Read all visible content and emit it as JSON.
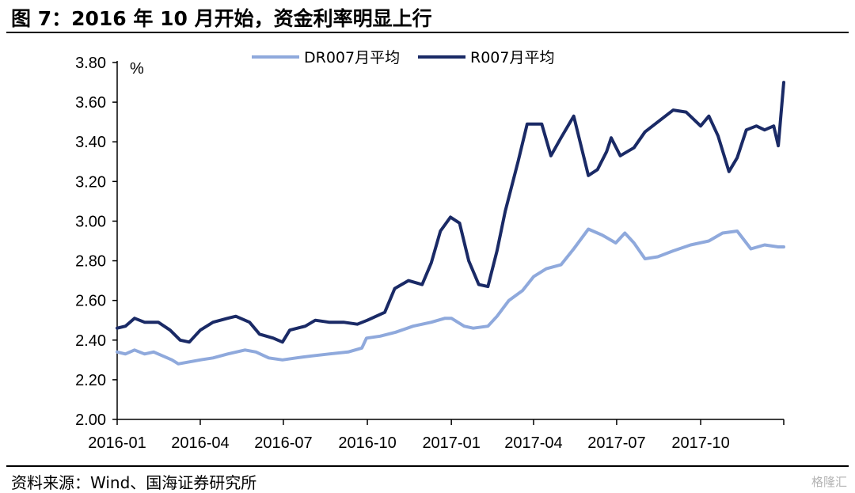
{
  "header": {
    "title": "图 7：2016 年 10 月开始，资金利率明显上行"
  },
  "footer": {
    "source": "资料来源：Wind、国海证券研究所",
    "watermark": "格隆汇"
  },
  "chart_data": {
    "type": "line",
    "title": "图 7：2016 年 10 月开始，资金利率明显上行",
    "ylabel": "%",
    "xlabel": "",
    "ylim": [
      2.0,
      3.8
    ],
    "yticks": [
      "2.00",
      "2.20",
      "2.40",
      "2.60",
      "2.80",
      "3.00",
      "3.20",
      "3.40",
      "3.60",
      "3.80"
    ],
    "xrange": [
      "2016-01-01",
      "2017-12-31"
    ],
    "xticks": [
      {
        "date": "2016-01-01",
        "label": "2016-01"
      },
      {
        "date": "2016-04-01",
        "label": "2016-04"
      },
      {
        "date": "2016-07-01",
        "label": "2016-07"
      },
      {
        "date": "2016-10-01",
        "label": "2016-10"
      },
      {
        "date": "2017-01-01",
        "label": "2017-01"
      },
      {
        "date": "2017-04-01",
        "label": "2017-04"
      },
      {
        "date": "2017-07-01",
        "label": "2017-07"
      },
      {
        "date": "2017-10-01",
        "label": "2017-10"
      }
    ],
    "legend_position": "top-center",
    "grid": false,
    "series": [
      {
        "name": "DR007月平均",
        "color": "#8fa9dc",
        "points": [
          [
            "2016-01-01",
            2.34
          ],
          [
            "2016-01-10",
            2.33
          ],
          [
            "2016-01-20",
            2.35
          ],
          [
            "2016-01-31",
            2.33
          ],
          [
            "2016-02-10",
            2.34
          ],
          [
            "2016-02-20",
            2.32
          ],
          [
            "2016-03-01",
            2.3
          ],
          [
            "2016-03-08",
            2.28
          ],
          [
            "2016-03-20",
            2.29
          ],
          [
            "2016-04-01",
            2.3
          ],
          [
            "2016-04-15",
            2.31
          ],
          [
            "2016-05-01",
            2.33
          ],
          [
            "2016-05-20",
            2.35
          ],
          [
            "2016-06-01",
            2.34
          ],
          [
            "2016-06-15",
            2.31
          ],
          [
            "2016-06-30",
            2.3
          ],
          [
            "2016-07-15",
            2.31
          ],
          [
            "2016-08-01",
            2.32
          ],
          [
            "2016-08-20",
            2.33
          ],
          [
            "2016-09-10",
            2.34
          ],
          [
            "2016-09-25",
            2.36
          ],
          [
            "2016-09-30",
            2.41
          ],
          [
            "2016-10-15",
            2.42
          ],
          [
            "2016-11-01",
            2.44
          ],
          [
            "2016-11-20",
            2.47
          ],
          [
            "2016-12-10",
            2.49
          ],
          [
            "2016-12-25",
            2.51
          ],
          [
            "2017-01-01",
            2.51
          ],
          [
            "2017-01-15",
            2.47
          ],
          [
            "2017-01-25",
            2.46
          ],
          [
            "2017-02-10",
            2.47
          ],
          [
            "2017-02-20",
            2.52
          ],
          [
            "2017-03-05",
            2.6
          ],
          [
            "2017-03-20",
            2.65
          ],
          [
            "2017-04-01",
            2.72
          ],
          [
            "2017-04-15",
            2.76
          ],
          [
            "2017-05-01",
            2.78
          ],
          [
            "2017-05-15",
            2.86
          ],
          [
            "2017-05-31",
            2.96
          ],
          [
            "2017-06-15",
            2.93
          ],
          [
            "2017-06-30",
            2.89
          ],
          [
            "2017-07-10",
            2.94
          ],
          [
            "2017-07-20",
            2.89
          ],
          [
            "2017-08-01",
            2.81
          ],
          [
            "2017-08-15",
            2.82
          ],
          [
            "2017-09-01",
            2.85
          ],
          [
            "2017-09-20",
            2.88
          ],
          [
            "2017-10-10",
            2.9
          ],
          [
            "2017-10-25",
            2.94
          ],
          [
            "2017-11-10",
            2.95
          ],
          [
            "2017-11-25",
            2.86
          ],
          [
            "2017-12-10",
            2.88
          ],
          [
            "2017-12-25",
            2.87
          ],
          [
            "2017-12-31",
            2.87
          ]
        ]
      },
      {
        "name": "R007月平均",
        "color": "#1a2a66",
        "points": [
          [
            "2016-01-01",
            2.46
          ],
          [
            "2016-01-10",
            2.47
          ],
          [
            "2016-01-20",
            2.51
          ],
          [
            "2016-01-31",
            2.49
          ],
          [
            "2016-02-15",
            2.49
          ],
          [
            "2016-02-28",
            2.45
          ],
          [
            "2016-03-10",
            2.4
          ],
          [
            "2016-03-20",
            2.39
          ],
          [
            "2016-04-01",
            2.45
          ],
          [
            "2016-04-15",
            2.49
          ],
          [
            "2016-05-01",
            2.51
          ],
          [
            "2016-05-10",
            2.52
          ],
          [
            "2016-05-25",
            2.49
          ],
          [
            "2016-06-05",
            2.43
          ],
          [
            "2016-06-20",
            2.41
          ],
          [
            "2016-06-30",
            2.39
          ],
          [
            "2016-07-08",
            2.45
          ],
          [
            "2016-07-25",
            2.47
          ],
          [
            "2016-08-05",
            2.5
          ],
          [
            "2016-08-20",
            2.49
          ],
          [
            "2016-09-05",
            2.49
          ],
          [
            "2016-09-20",
            2.48
          ],
          [
            "2016-10-01",
            2.5
          ],
          [
            "2016-10-20",
            2.54
          ],
          [
            "2016-10-31",
            2.66
          ],
          [
            "2016-11-15",
            2.7
          ],
          [
            "2016-11-30",
            2.68
          ],
          [
            "2016-12-10",
            2.79
          ],
          [
            "2016-12-20",
            2.95
          ],
          [
            "2016-12-31",
            3.02
          ],
          [
            "2017-01-10",
            2.99
          ],
          [
            "2017-01-20",
            2.8
          ],
          [
            "2017-01-31",
            2.68
          ],
          [
            "2017-02-10",
            2.67
          ],
          [
            "2017-02-20",
            2.85
          ],
          [
            "2017-03-01",
            3.05
          ],
          [
            "2017-03-15",
            3.3
          ],
          [
            "2017-03-25",
            3.49
          ],
          [
            "2017-04-10",
            3.49
          ],
          [
            "2017-04-20",
            3.33
          ],
          [
            "2017-05-01",
            3.42
          ],
          [
            "2017-05-15",
            3.53
          ],
          [
            "2017-05-31",
            3.23
          ],
          [
            "2017-06-10",
            3.26
          ],
          [
            "2017-06-20",
            3.35
          ],
          [
            "2017-06-25",
            3.42
          ],
          [
            "2017-07-05",
            3.33
          ],
          [
            "2017-07-20",
            3.37
          ],
          [
            "2017-08-01",
            3.45
          ],
          [
            "2017-08-15",
            3.5
          ],
          [
            "2017-09-01",
            3.56
          ],
          [
            "2017-09-15",
            3.55
          ],
          [
            "2017-10-01",
            3.48
          ],
          [
            "2017-10-10",
            3.53
          ],
          [
            "2017-10-20",
            3.43
          ],
          [
            "2017-11-01",
            3.25
          ],
          [
            "2017-11-10",
            3.32
          ],
          [
            "2017-11-20",
            3.46
          ],
          [
            "2017-12-01",
            3.48
          ],
          [
            "2017-12-10",
            3.46
          ],
          [
            "2017-12-20",
            3.48
          ],
          [
            "2017-12-25",
            3.38
          ],
          [
            "2017-12-31",
            3.7
          ]
        ]
      }
    ]
  }
}
